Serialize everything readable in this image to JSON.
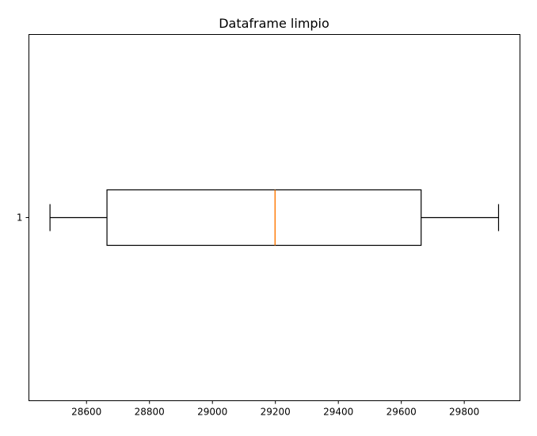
{
  "chart_data": {
    "type": "boxplot",
    "title": "Dataframe limpio",
    "xlabel": "",
    "ylabel": "",
    "orientation": "horizontal",
    "xlim": [
      28417,
      29977
    ],
    "xticks": [
      28600,
      28800,
      29000,
      29200,
      29400,
      29600,
      29800
    ],
    "xtick_labels": [
      "28600",
      "28800",
      "29000",
      "29200",
      "29400",
      "29600",
      "29800"
    ],
    "categories": [
      "1"
    ],
    "boxes": [
      {
        "label": "1",
        "whisker_low": 28484,
        "q1": 28665,
        "median": 29199,
        "q3": 29663,
        "whisker_high": 29909
      }
    ],
    "grid": false,
    "colors": {
      "box": "#000000",
      "median": "#ff7f0e",
      "axes": "#000000"
    }
  }
}
